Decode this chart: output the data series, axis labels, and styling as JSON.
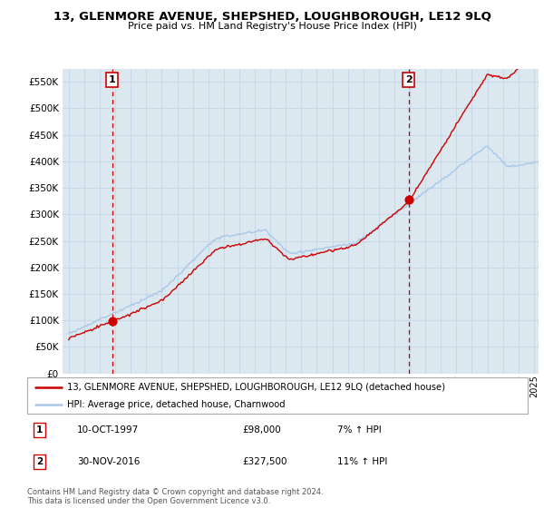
{
  "title": "13, GLENMORE AVENUE, SHEPSHED, LOUGHBOROUGH, LE12 9LQ",
  "subtitle": "Price paid vs. HM Land Registry's House Price Index (HPI)",
  "legend_line1": "13, GLENMORE AVENUE, SHEPSHED, LOUGHBOROUGH, LE12 9LQ (detached house)",
  "legend_line2": "HPI: Average price, detached house, Charnwood",
  "annotation1_label": "1",
  "annotation1_date": "10-OCT-1997",
  "annotation1_price": "£98,000",
  "annotation1_hpi": "7% ↑ HPI",
  "annotation2_label": "2",
  "annotation2_date": "30-NOV-2016",
  "annotation2_price": "£327,500",
  "annotation2_hpi": "11% ↑ HPI",
  "footer": "Contains HM Land Registry data © Crown copyright and database right 2024.\nThis data is licensed under the Open Government Licence v3.0.",
  "sale1_year": 1997.79,
  "sale1_price": 98000,
  "sale2_year": 2016.91,
  "sale2_price": 327500,
  "hpi_color": "#a8c8e8",
  "price_color": "#cc0000",
  "dot_color": "#cc0000",
  "vline_color": "#cc0000",
  "grid_color": "#c8d8e8",
  "bg_color": "#dce8f0",
  "plot_bg": "#dce8f0",
  "outer_bg": "#ffffff",
  "ylim": [
    0,
    575000
  ],
  "yticks": [
    0,
    50000,
    100000,
    150000,
    200000,
    250000,
    300000,
    350000,
    400000,
    450000,
    500000,
    550000
  ],
  "xlim_start": 1994.6,
  "xlim_end": 2025.3
}
